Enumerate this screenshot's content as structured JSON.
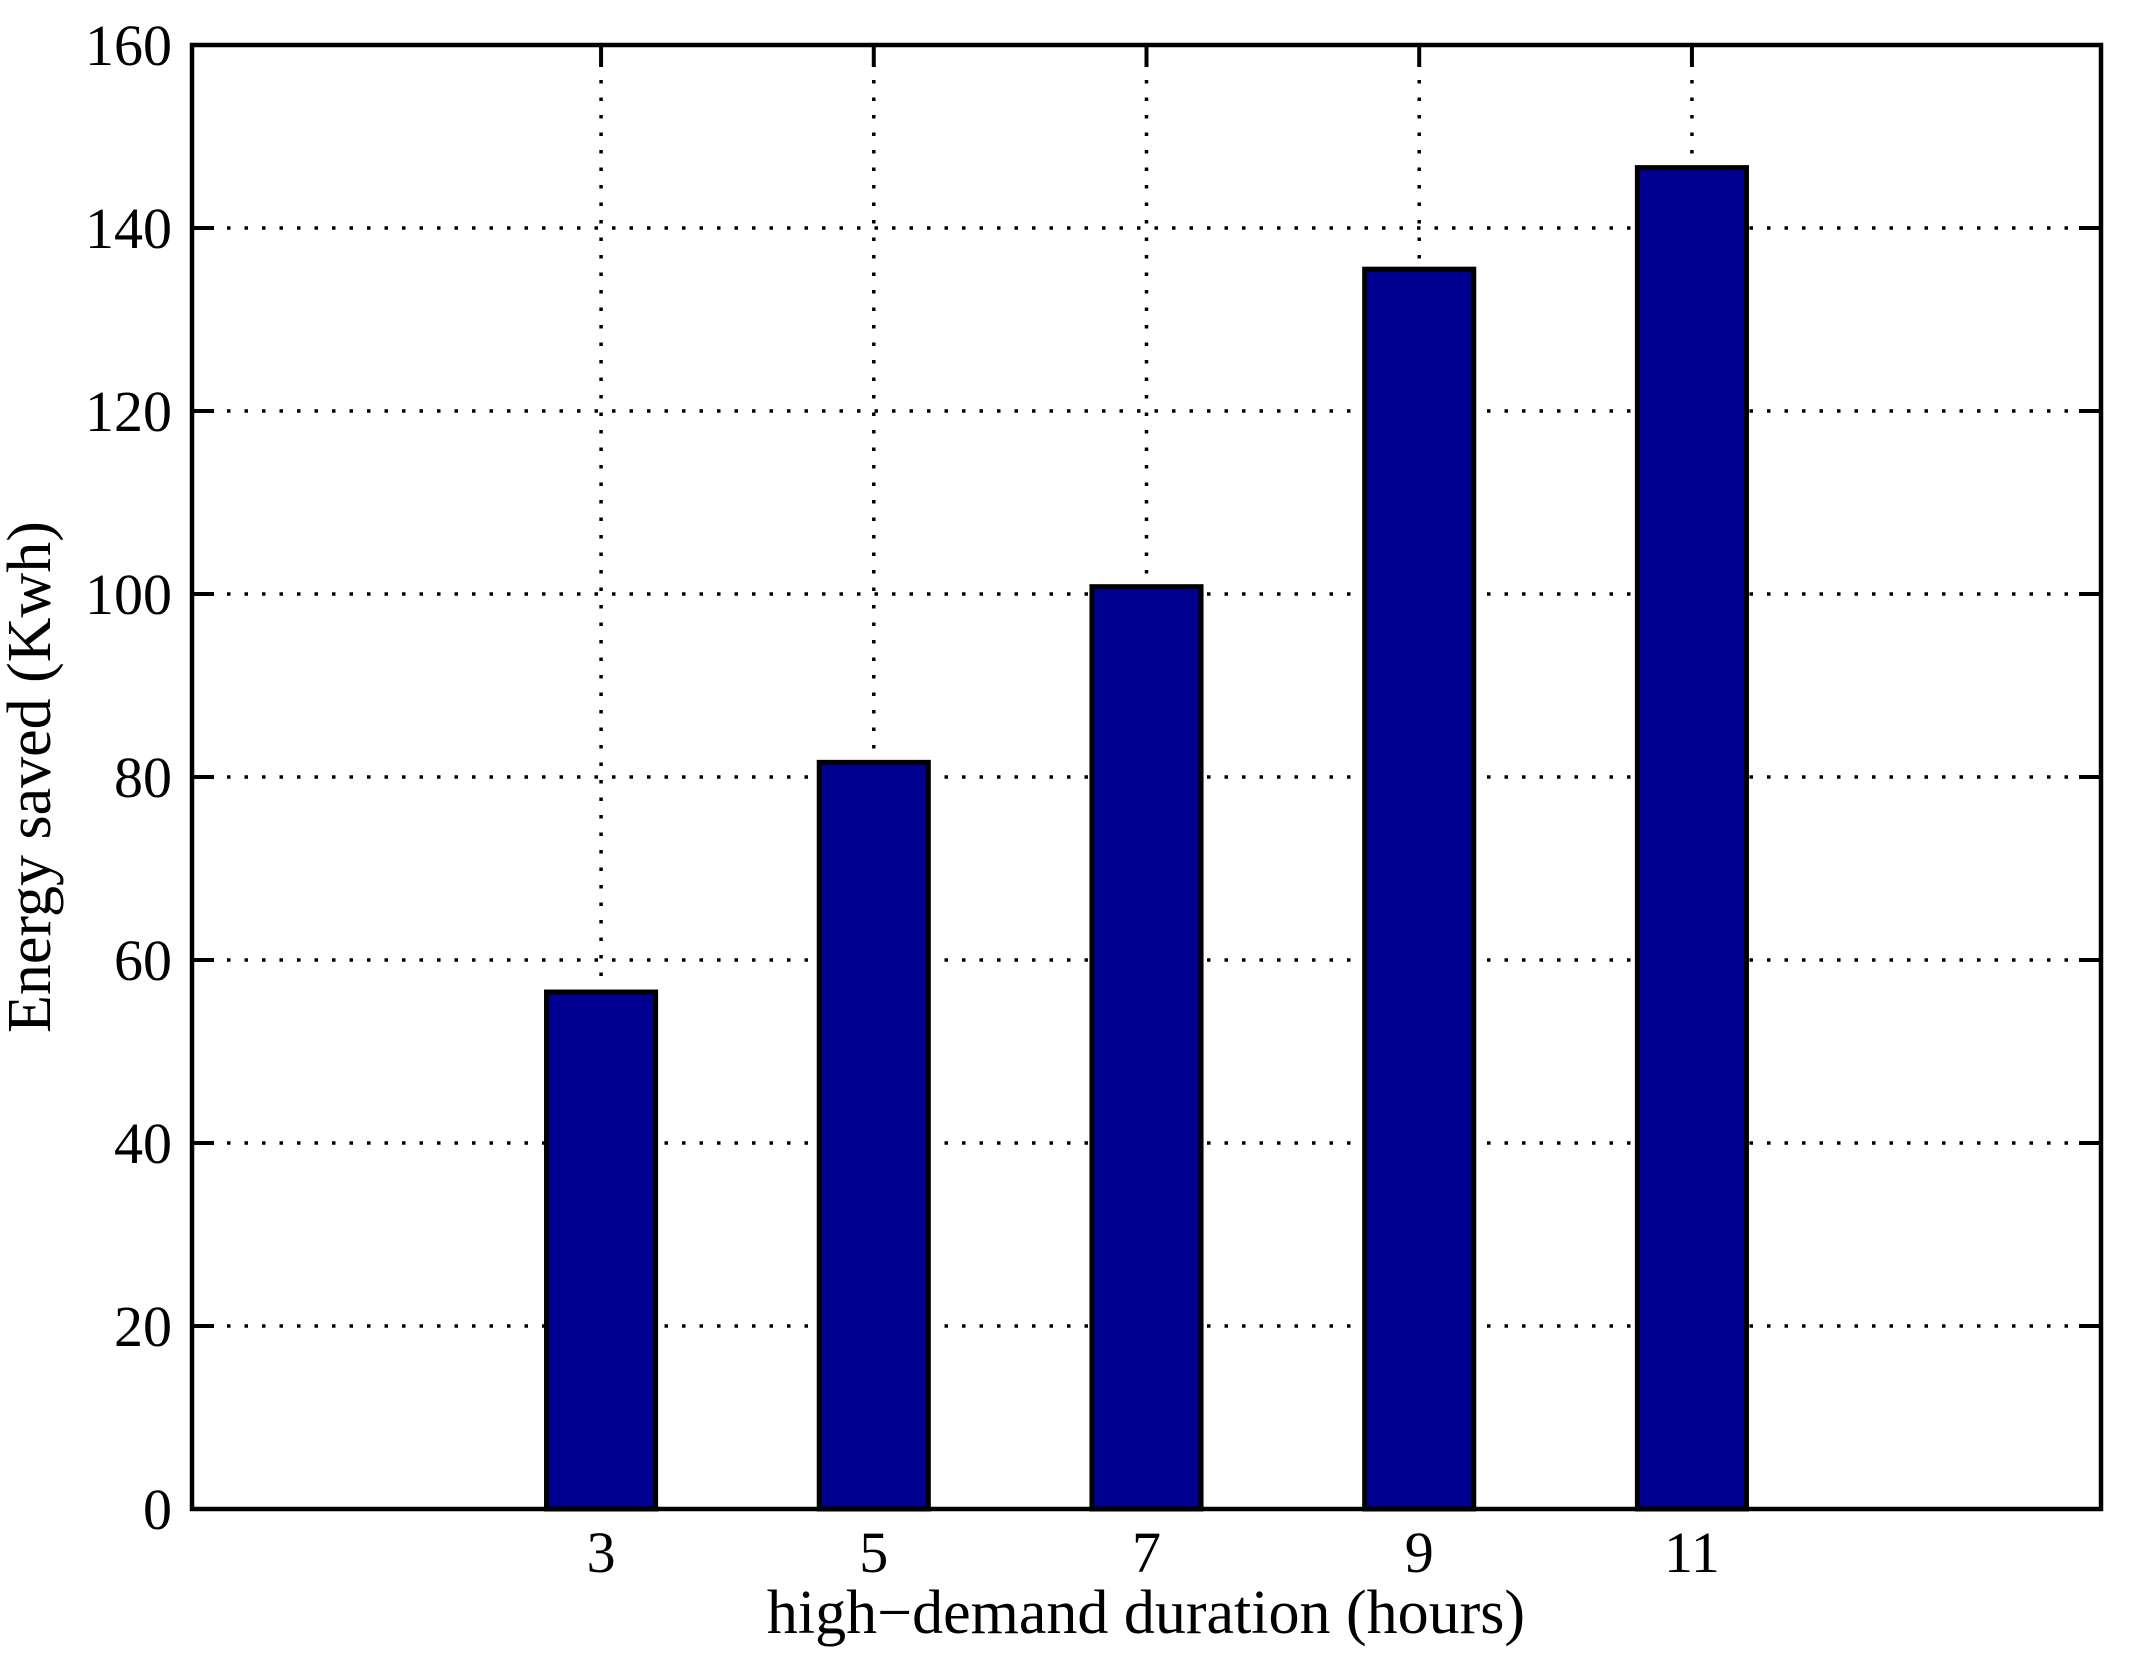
{
  "figure": {
    "background": "#ffffff"
  },
  "chart_data": {
    "type": "bar",
    "title": "",
    "xlabel": "high−demand duration (hours)",
    "ylabel": "Energy saved (Kwh)",
    "categories": [
      3,
      5,
      7,
      9,
      11
    ],
    "x_tick_labels": [
      "3",
      "5",
      "7",
      "9",
      "11"
    ],
    "values": [
      56.5,
      81.6,
      100.8,
      135.5,
      146.6
    ],
    "series_name": "Energy saved",
    "xlim": [
      0,
      14
    ],
    "ylim": [
      0,
      160
    ],
    "yticks": [
      0,
      20,
      40,
      60,
      80,
      100,
      120,
      140,
      160
    ],
    "y_tick_labels": [
      "0",
      "20",
      "40",
      "60",
      "80",
      "100",
      "120",
      "140",
      "160"
    ],
    "grid": "dotted",
    "grid_on": true,
    "legend_position": "none",
    "bar_width_units": 0.8,
    "bar_fill": "#000090",
    "bar_edge": "#000000",
    "axis_color": "#000000",
    "grid_color": "#000000",
    "text_color": "#000000"
  }
}
